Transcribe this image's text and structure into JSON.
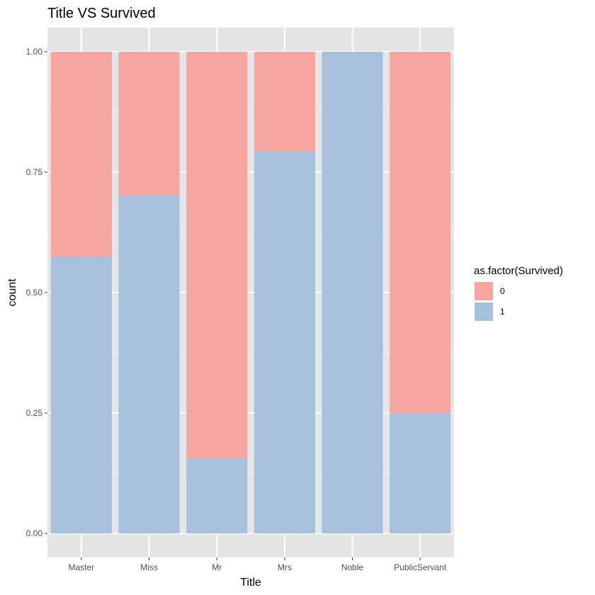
{
  "chart_data": {
    "type": "bar",
    "stacked": true,
    "title": "Title VS Survived",
    "xlabel": "Title",
    "ylabel": "count",
    "categories": [
      "Master",
      "Miss",
      "Mr",
      "Mrs",
      "Noble",
      "PublicServant"
    ],
    "ylim": [
      0,
      1
    ],
    "yticks": [
      "0.00",
      "0.25",
      "0.50",
      "0.75",
      "1.00"
    ],
    "ytick_values": [
      0,
      0.25,
      0.5,
      0.75,
      1
    ],
    "grid": true,
    "legend": {
      "title": "as.factor(Survived)",
      "position": "right"
    },
    "series": [
      {
        "name": "1",
        "color": "#a7c0db",
        "values": [
          0.575,
          0.703,
          0.157,
          0.794,
          1.0,
          0.25
        ]
      },
      {
        "name": "0",
        "color": "#f7a5a0",
        "values": [
          0.425,
          0.297,
          0.843,
          0.206,
          0.0,
          0.75
        ]
      }
    ]
  }
}
